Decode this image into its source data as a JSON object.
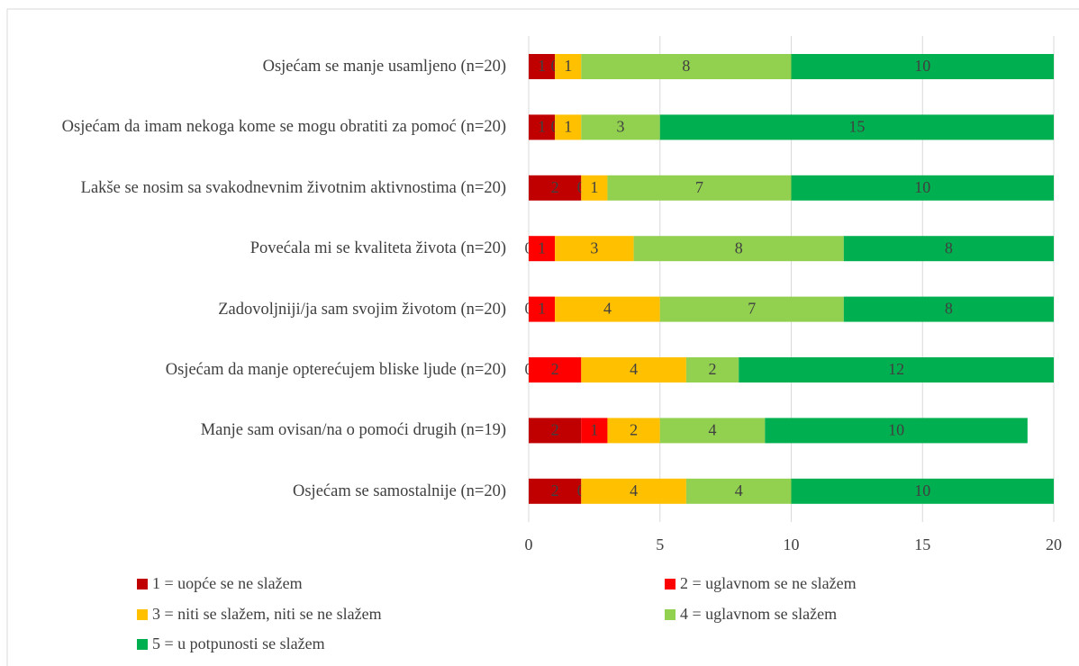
{
  "chart_data": {
    "type": "stacked_bar_horizontal",
    "categories": [
      "Osjećam se manje usamljeno (n=20)",
      "Osjećam da imam nekoga kome se mogu obratiti za pomoć (n=20)",
      "Lakše se nosim sa svakodnevnim životnim aktivnostima (n=20)",
      "Povećala mi se kvaliteta života (n=20)",
      "Zadovoljniji/ja sam svojim životom (n=20)",
      "Osjećam da manje opterećujem bliske ljude (n=20)",
      "Manje sam ovisan/na o pomoći drugih (n=19)",
      "Osjećam se samostalnije (n=20)"
    ],
    "series": [
      {
        "name": "1 = uopće se ne slažem",
        "color": "#c00000",
        "values": [
          1,
          1,
          2,
          0,
          0,
          0,
          2,
          2
        ]
      },
      {
        "name": "2 = uglavnom se ne slažem",
        "color": "#ff0000",
        "values": [
          0,
          0,
          0,
          1,
          1,
          2,
          1,
          0
        ]
      },
      {
        "name": "3 = niti se slažem, niti se ne slažem",
        "color": "#ffc000",
        "values": [
          1,
          1,
          1,
          3,
          4,
          4,
          2,
          4
        ]
      },
      {
        "name": "4 = uglavnom se slažem",
        "color": "#92d050",
        "values": [
          8,
          3,
          7,
          8,
          7,
          2,
          4,
          4
        ]
      },
      {
        "name": "5 = u potpunosti se slažem",
        "color": "#00b050",
        "values": [
          10,
          15,
          10,
          8,
          8,
          12,
          10,
          10
        ]
      }
    ],
    "xlim": [
      0,
      20
    ],
    "xticks": [
      0,
      5,
      10,
      15,
      20
    ],
    "grid": true
  }
}
